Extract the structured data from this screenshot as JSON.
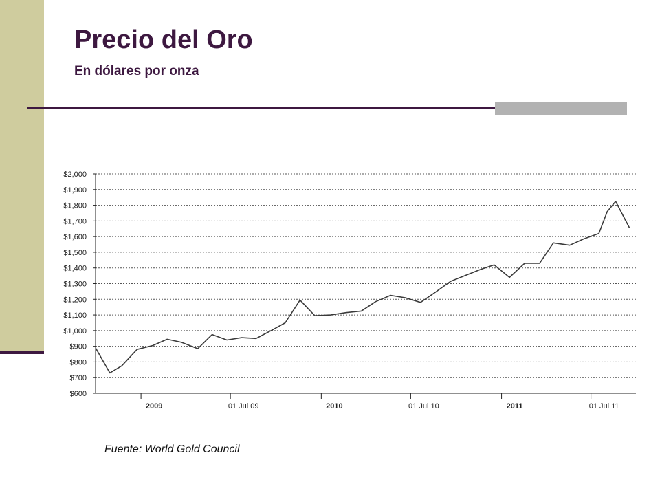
{
  "header": {
    "title": "Precio del Oro",
    "subtitle": "En dólares por onza"
  },
  "footer": {
    "source": "Fuente: World Gold Council"
  },
  "colors": {
    "accent": "#3d1840",
    "sidebar": "#cfcc9e",
    "rule_accent": "#b2b2b2",
    "line": "#3a3a3a"
  },
  "chart_data": {
    "type": "line",
    "title": "",
    "xlabel": "",
    "ylabel": "",
    "ylim": [
      600,
      2000
    ],
    "xlim": [
      "2008-10-01",
      "2011-09-30"
    ],
    "grid": true,
    "y_ticks": [
      {
        "value": 2000,
        "label": "$2,000"
      },
      {
        "value": 1900,
        "label": "$1,900"
      },
      {
        "value": 1800,
        "label": "$1,800"
      },
      {
        "value": 1700,
        "label": "$1,700"
      },
      {
        "value": 1600,
        "label": "$1,600"
      },
      {
        "value": 1500,
        "label": "$1,500"
      },
      {
        "value": 1400,
        "label": "$1,400"
      },
      {
        "value": 1300,
        "label": "$1,300"
      },
      {
        "value": 1200,
        "label": "$1,200"
      },
      {
        "value": 1100,
        "label": "$1,100"
      },
      {
        "value": 1000,
        "label": "$1,000"
      },
      {
        "value": 900,
        "label": "$900"
      },
      {
        "value": 800,
        "label": "$800"
      },
      {
        "value": 700,
        "label": "$700"
      },
      {
        "value": 600,
        "label": "$600"
      }
    ],
    "x_ticks": [
      {
        "date": "2009-01-01",
        "label": "2009",
        "bold": true
      },
      {
        "date": "2009-07-01",
        "label": "01 Jul 09",
        "bold": false
      },
      {
        "date": "2010-01-01",
        "label": "2010",
        "bold": true
      },
      {
        "date": "2010-07-01",
        "label": "01 Jul 10",
        "bold": false
      },
      {
        "date": "2011-01-01",
        "label": "2011",
        "bold": true
      },
      {
        "date": "2011-07-01",
        "label": "01 Jul 11",
        "bold": false
      }
    ],
    "series": [
      {
        "x": [
          "2008-10-01",
          "2008-10-30",
          "2008-11-23",
          "2008-12-24",
          "2009-01-25",
          "2009-02-23",
          "2009-03-24",
          "2009-04-26",
          "2009-05-25",
          "2009-06-24",
          "2009-07-24",
          "2009-08-22",
          "2009-09-21",
          "2009-10-20",
          "2009-11-19",
          "2009-12-19",
          "2010-01-20",
          "2010-02-20",
          "2010-03-23",
          "2010-04-21",
          "2010-05-21",
          "2010-06-20",
          "2010-07-21",
          "2010-08-20",
          "2010-09-20",
          "2010-10-18",
          "2010-11-19",
          "2010-12-17",
          "2011-01-17",
          "2011-02-17",
          "2011-03-19",
          "2011-04-16",
          "2011-05-19",
          "2011-06-16",
          "2011-07-17",
          "2011-08-03",
          "2011-08-20",
          "2011-09-17"
        ],
        "y": [
          890,
          730,
          775,
          880,
          905,
          945,
          925,
          885,
          975,
          940,
          955,
          950,
          1000,
          1050,
          1195,
          1095,
          1100,
          1115,
          1125,
          1185,
          1225,
          1210,
          1180,
          1245,
          1315,
          1350,
          1390,
          1420,
          1340,
          1430,
          1430,
          1560,
          1545,
          1585,
          1620,
          1760,
          1825,
          1655
        ]
      }
    ]
  }
}
